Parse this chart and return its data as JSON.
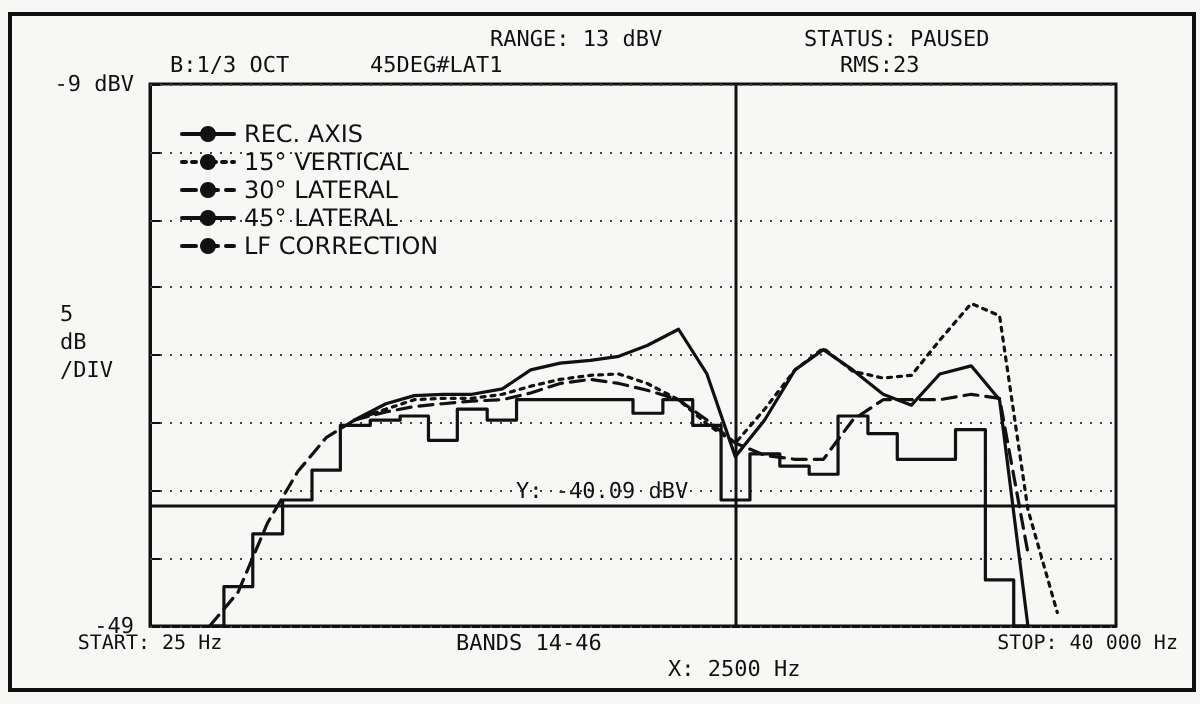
{
  "chart_data": {
    "type": "line",
    "ylabel": "5 dB /DIV",
    "annotations": [
      "RANGE: 13 dBV",
      "STATUS: PAUSED",
      "B:1/3 OCT",
      "45DEG#LAT1",
      "RMS:23",
      "BANDS 14-46"
    ],
    "x": [
      40,
      50,
      63,
      80,
      100,
      125,
      160,
      200,
      250,
      315,
      400,
      500,
      630,
      800,
      1000,
      1250,
      1600,
      2000,
      2500,
      3150,
      4000,
      5000,
      6300,
      8000,
      10000,
      12500,
      16000,
      20000,
      25000,
      31500
    ],
    "log": "x",
    "xlim": [
      25,
      50000
    ],
    "xticks": [
      {
        "value": 25,
        "label": "START: 25 Hz"
      },
      {
        "value": 40000,
        "label": "STOP: 40 000 Hz"
      }
    ],
    "ylim": [
      -49,
      -9
    ],
    "yticks": [
      {
        "value": -49,
        "label": "-49"
      },
      {
        "value": -44,
        "label": null
      },
      {
        "value": -39,
        "label": null
      },
      {
        "value": -34,
        "label": null
      },
      {
        "value": -29,
        "label": null
      },
      {
        "value": -24,
        "label": null
      },
      {
        "value": -19,
        "label": null
      },
      {
        "value": -14,
        "label": null
      },
      {
        "value": -9,
        "label": "-9 dBV"
      }
    ],
    "grid": "y",
    "legend": "top left",
    "marker": "none",
    "ref_lines": [
      {
        "axis": "x",
        "value": 2500,
        "label": "X: 2500 Hz"
      },
      {
        "axis": "y",
        "value": -40.09,
        "label": "Y: -40.09 dBV"
      }
    ],
    "series": [
      {
        "name": "REC. AXIS",
        "color": "#111111",
        "line_style": "solid",
        "values": [
          null,
          null,
          null,
          null,
          null,
          -33.8,
          -32.6,
          -32.0,
          -31.9,
          -31.9,
          -31.5,
          -30.1,
          -29.6,
          -29.4,
          -29.1,
          -28.3,
          -27.1,
          -30.4,
          -36.5,
          -33.8,
          -30.1,
          -28.6,
          -30.1,
          -31.9,
          -32.7,
          -30.4,
          -29.8,
          -32.3,
          -49,
          null
        ]
      },
      {
        "name": "15° VERTICAL",
        "color": "#111111",
        "line_style": "dotted",
        "values": [
          null,
          null,
          null,
          null,
          null,
          -33.8,
          -33.0,
          -32.3,
          -32.2,
          -32.2,
          -31.9,
          -31.3,
          -30.8,
          -30.5,
          -30.4,
          -31.1,
          -32.3,
          -34.1,
          -35.5,
          -33.0,
          -30.1,
          -28.5,
          -30.2,
          -30.7,
          -30.5,
          -27.9,
          -25.2,
          -26.1,
          -40.4,
          -48
        ]
      },
      {
        "name": "30° LATERAL",
        "color": "#111111",
        "line_style": "dashed",
        "values": [
          null,
          null,
          null,
          null,
          null,
          -33.8,
          -33.2,
          -32.8,
          -32.6,
          -32.4,
          -32.3,
          -31.8,
          -31.1,
          -30.8,
          -31.1,
          -31.6,
          -32.3,
          -33.8,
          -35.5,
          -36.4,
          -36.7,
          -36.7,
          -33.8,
          -32.3,
          -32.3,
          -32.3,
          -31.9,
          -32.2,
          -43.6,
          null
        ]
      },
      {
        "name": "45° LATERAL",
        "color": "#111111",
        "type": "step",
        "line_style": "solid",
        "x": [
          40,
          50,
          63,
          80,
          100,
          125,
          160,
          200,
          250,
          315,
          400,
          500,
          630,
          800,
          1000,
          1250,
          1600,
          2000,
          2500,
          3150,
          4000,
          5000,
          6300,
          8000,
          10000,
          12500,
          16000,
          20000,
          25000
        ],
        "values": [
          -49,
          -46.1,
          -42.2,
          -39.7,
          -37.5,
          -34.2,
          -33.8,
          -33.5,
          -35.3,
          -33.0,
          -33.8,
          -32.3,
          -32.3,
          -32.3,
          -32.3,
          -33.3,
          -32.3,
          -34.2,
          -39.7,
          -36.3,
          -37.2,
          -37.8,
          -33.5,
          -34.8,
          -36.7,
          -36.7,
          -34.5,
          -45.6,
          -49
        ]
      },
      {
        "name": "LF CORRECTION",
        "color": "#111111",
        "line_style": "dashed",
        "values": [
          -49,
          -46.5,
          -41.4,
          -37.6,
          -35.1,
          -33.8,
          -33.0,
          null,
          null,
          null,
          null,
          null,
          null,
          null,
          null,
          null,
          null,
          null,
          null,
          null,
          null,
          null,
          null,
          null,
          null,
          null,
          null,
          null,
          null,
          null
        ]
      }
    ]
  }
}
